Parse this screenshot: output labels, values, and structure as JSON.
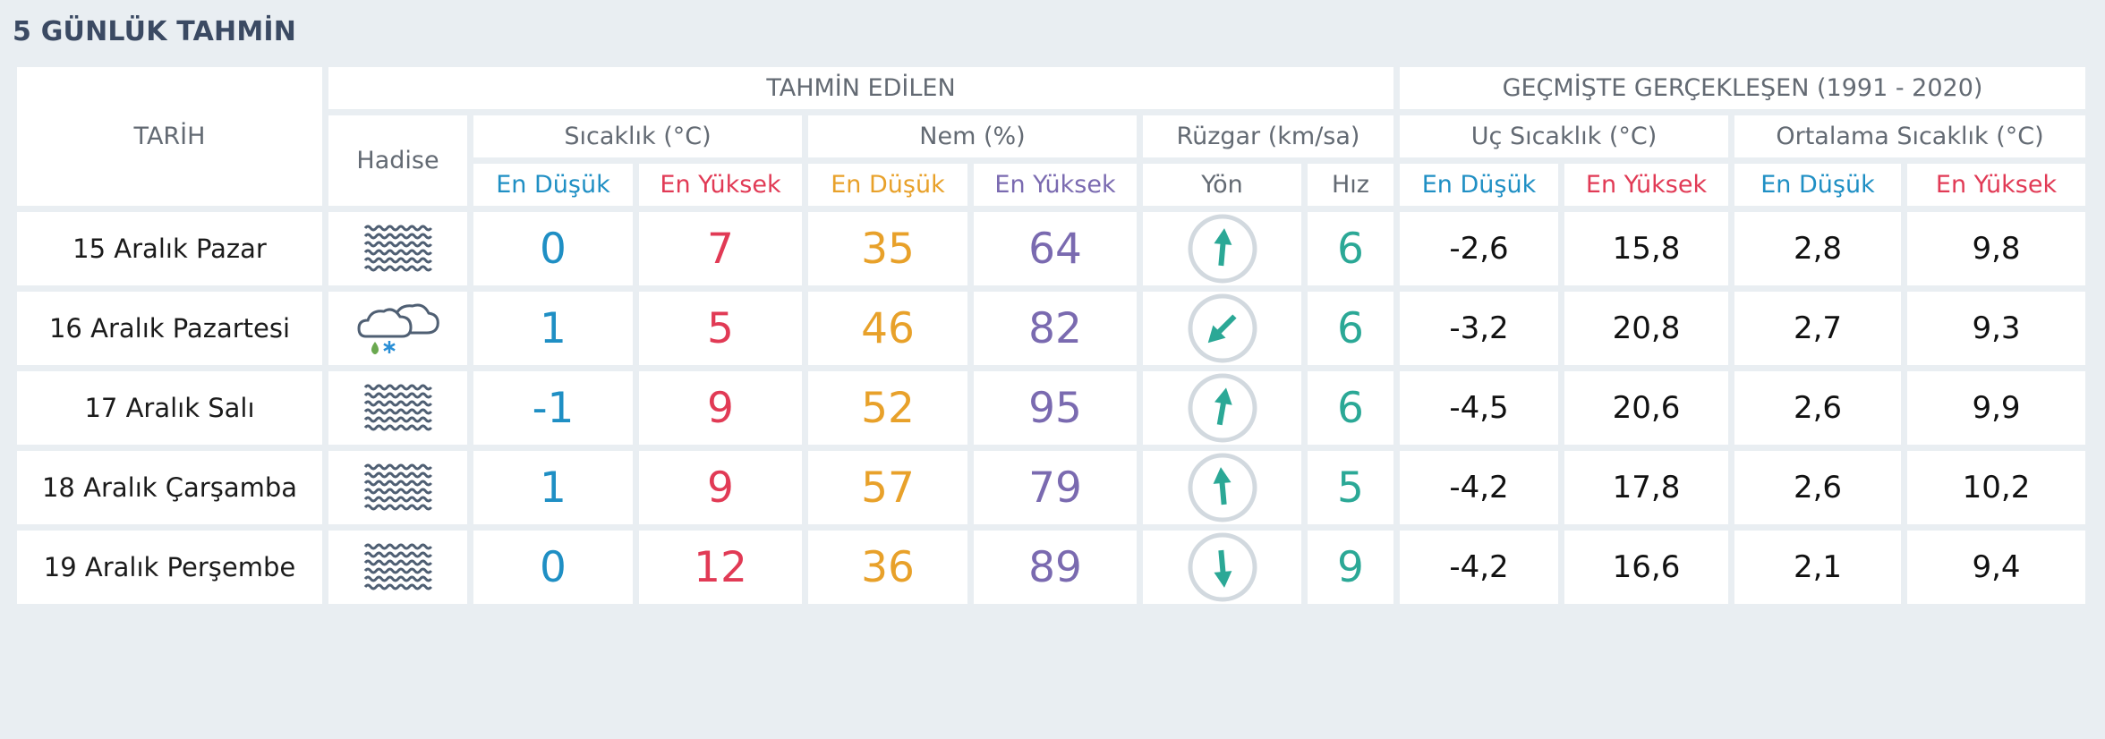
{
  "page_title": "5 GÜNLÜK TAHMİN",
  "headers": {
    "tarih": "TARİH",
    "tahmin_edilen": "TAHMİN EDİLEN",
    "gecmiste": "GEÇMİŞTE GERÇEKLEŞEN (1991 - 2020)",
    "hadise": "Hadise",
    "sicaklik": "Sıcaklık (°C)",
    "nem": "Nem (%)",
    "ruzgar": "Rüzgar (km/sa)",
    "uc_sicaklik": "Uç Sıcaklık (°C)",
    "ortalama_sicaklik": "Ortalama Sıcaklık (°C)",
    "en_dusuk": "En Düşük",
    "en_yuksek": "En Yüksek",
    "yon": "Yön",
    "hiz": "Hız"
  },
  "colors": {
    "low": "#1f8fc4",
    "high": "#e13a55",
    "humidity_low": "#e8a12a",
    "humidity_high": "#7a6ab0",
    "wind": "#2ba896",
    "background": "#e9eef2"
  },
  "rows": [
    {
      "date": "15 Aralık Pazar",
      "icon": "fog-icon",
      "temp_min": "0",
      "temp_max": "7",
      "hum_min": "35",
      "hum_max": "64",
      "wind_dir_deg": 5,
      "wind_speed": "6",
      "ext_min": "-2,6",
      "ext_max": "15,8",
      "avg_min": "2,8",
      "avg_max": "9,8"
    },
    {
      "date": "16 Aralık Pazartesi",
      "icon": "sleet-icon",
      "temp_min": "1",
      "temp_max": "5",
      "hum_min": "46",
      "hum_max": "82",
      "wind_dir_deg": 225,
      "wind_speed": "6",
      "ext_min": "-3,2",
      "ext_max": "20,8",
      "avg_min": "2,7",
      "avg_max": "9,3"
    },
    {
      "date": "17 Aralık Salı",
      "icon": "fog-icon",
      "temp_min": "-1",
      "temp_max": "9",
      "hum_min": "52",
      "hum_max": "95",
      "wind_dir_deg": 10,
      "wind_speed": "6",
      "ext_min": "-4,5",
      "ext_max": "20,6",
      "avg_min": "2,6",
      "avg_max": "9,9"
    },
    {
      "date": "18 Aralık Çarşamba",
      "icon": "fog-icon",
      "temp_min": "1",
      "temp_max": "9",
      "hum_min": "57",
      "hum_max": "79",
      "wind_dir_deg": 355,
      "wind_speed": "5",
      "ext_min": "-4,2",
      "ext_max": "17,8",
      "avg_min": "2,6",
      "avg_max": "10,2"
    },
    {
      "date": "19 Aralık Perşembe",
      "icon": "fog-icon",
      "temp_min": "0",
      "temp_max": "12",
      "hum_min": "36",
      "hum_max": "89",
      "wind_dir_deg": 175,
      "wind_speed": "9",
      "ext_min": "-4,2",
      "ext_max": "16,6",
      "avg_min": "2,1",
      "avg_max": "9,4"
    }
  ]
}
